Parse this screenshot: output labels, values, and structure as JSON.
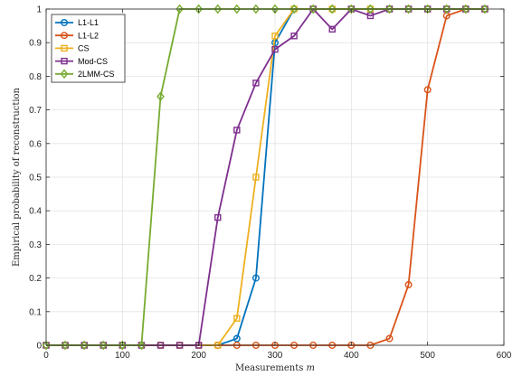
{
  "chart_data": {
    "type": "line",
    "title": "",
    "xlabel": "Measurements m",
    "xlabel_parts": [
      "Measurements ",
      "m"
    ],
    "ylabel": "Empirical probability of reconstruction",
    "xlim": [
      0,
      600
    ],
    "ylim": [
      0,
      1
    ],
    "xticks": [
      0,
      100,
      200,
      300,
      400,
      500,
      600
    ],
    "yticks": [
      0,
      0.1,
      0.2,
      0.3,
      0.4,
      0.5,
      0.6,
      0.7,
      0.8,
      0.9,
      1
    ],
    "xtick_labels": [
      "0",
      "100",
      "200",
      "300",
      "400",
      "500",
      "600"
    ],
    "ytick_labels": [
      "0",
      "0.1",
      "0.2",
      "0.3",
      "0.4",
      "0.5",
      "0.6",
      "0.7",
      "0.8",
      "0.9",
      "1"
    ],
    "grid": true,
    "legend_position": "top-left",
    "series": [
      {
        "name": "L1-L1",
        "color": "#0072BD",
        "marker": "circle",
        "x": [
          0,
          25,
          50,
          75,
          100,
          125,
          150,
          175,
          200,
          225,
          250,
          275,
          300,
          325,
          350,
          375,
          400,
          425,
          450,
          475,
          500,
          525,
          550,
          575
        ],
        "y": [
          0,
          0,
          0,
          0,
          0,
          0,
          0,
          0,
          0,
          0,
          0.02,
          0.2,
          0.9,
          1,
          1,
          1,
          1,
          1,
          1,
          1,
          1,
          1,
          1,
          1
        ]
      },
      {
        "name": "L1-L2",
        "color": "#D95319",
        "marker": "circle",
        "x": [
          0,
          25,
          50,
          75,
          100,
          125,
          150,
          175,
          200,
          225,
          250,
          275,
          300,
          325,
          350,
          375,
          400,
          425,
          450,
          475,
          500,
          525,
          550,
          575
        ],
        "y": [
          0,
          0,
          0,
          0,
          0,
          0,
          0,
          0,
          0,
          0,
          0,
          0,
          0,
          0,
          0,
          0,
          0,
          0,
          0.02,
          0.18,
          0.76,
          0.98,
          1,
          1
        ]
      },
      {
        "name": "CS",
        "color": "#EDB120",
        "marker": "square",
        "x": [
          0,
          25,
          50,
          75,
          100,
          125,
          150,
          175,
          200,
          225,
          250,
          275,
          300,
          325,
          350,
          375,
          400,
          425,
          450,
          475,
          500,
          525,
          550,
          575
        ],
        "y": [
          0,
          0,
          0,
          0,
          0,
          0,
          0,
          0,
          0,
          0,
          0.08,
          0.5,
          0.92,
          1,
          1,
          1,
          1,
          1,
          1,
          1,
          1,
          1,
          1,
          1
        ]
      },
      {
        "name": "Mod-CS",
        "color": "#7E2F8E",
        "marker": "square",
        "x": [
          0,
          25,
          50,
          75,
          100,
          125,
          150,
          175,
          200,
          225,
          250,
          275,
          300,
          325,
          350,
          375,
          400,
          425,
          450,
          475,
          500,
          525,
          550,
          575
        ],
        "y": [
          0,
          0,
          0,
          0,
          0,
          0,
          0,
          0,
          0,
          0.38,
          0.64,
          0.78,
          0.88,
          0.92,
          1,
          0.94,
          1,
          0.98,
          1,
          1,
          1,
          1,
          1,
          1
        ]
      },
      {
        "name": "2LMM-CS",
        "color": "#77AC30",
        "marker": "diamond",
        "x": [
          0,
          25,
          50,
          75,
          100,
          125,
          150,
          175,
          200,
          225,
          250,
          275,
          300,
          325,
          350,
          375,
          400,
          425,
          450,
          475,
          500,
          525,
          550,
          575
        ],
        "y": [
          0,
          0,
          0,
          0,
          0,
          0,
          0.74,
          1,
          1,
          1,
          1,
          1,
          1,
          1,
          1,
          1,
          1,
          1,
          1,
          1,
          1,
          1,
          1,
          1
        ]
      }
    ]
  }
}
